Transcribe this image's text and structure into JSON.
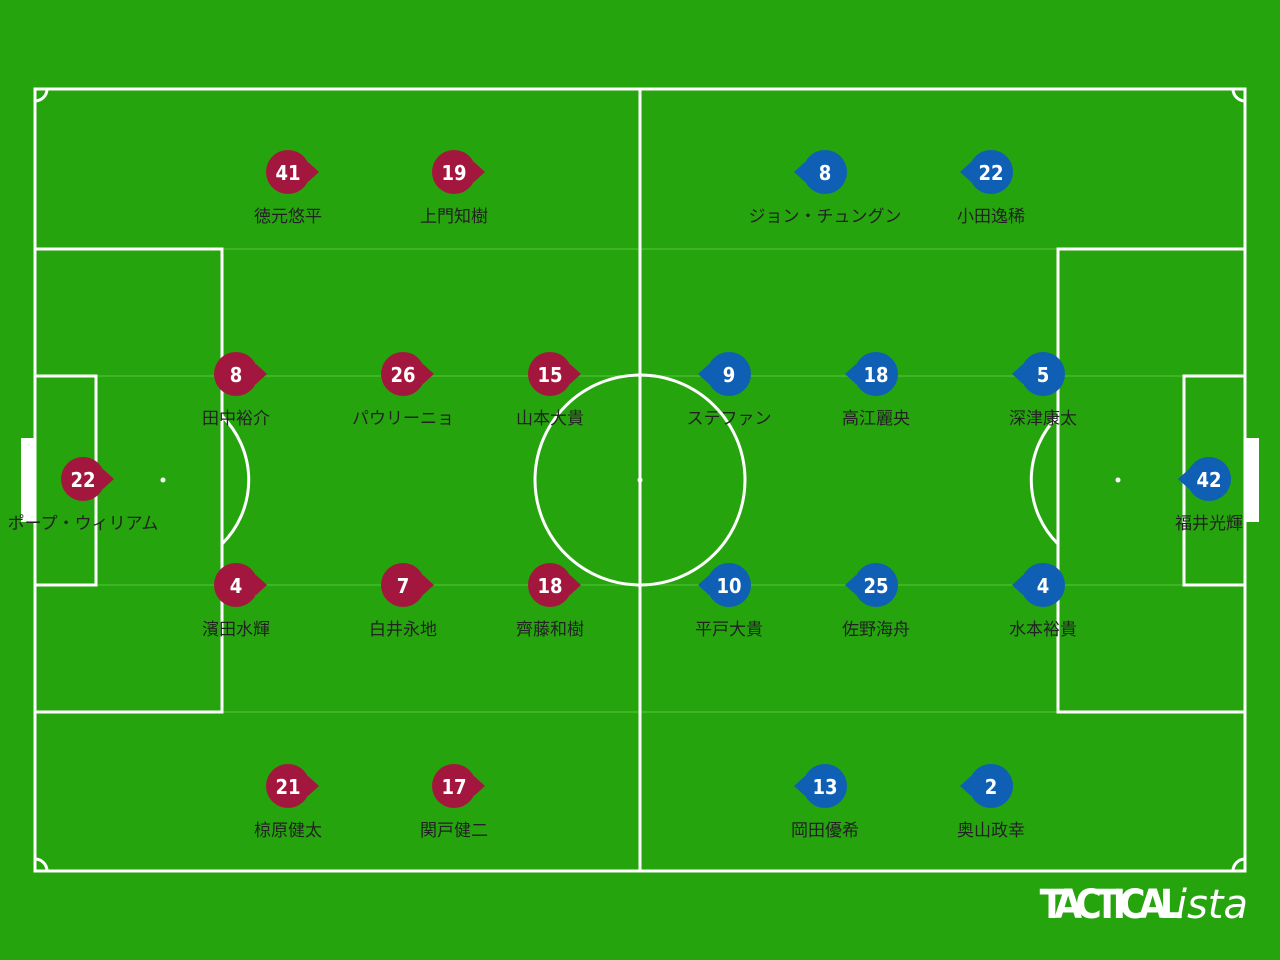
{
  "home": {
    "players": [
      {
        "number": 41,
        "name": "徳元悠平"
      },
      {
        "number": 19,
        "name": "上門知樹"
      },
      {
        "number": 8,
        "name": "田中裕介"
      },
      {
        "number": 26,
        "name": "パウリーニョ"
      },
      {
        "number": 15,
        "name": "山本大貴"
      },
      {
        "number": 22,
        "name": "ポープ・ウィリアム"
      },
      {
        "number": 4,
        "name": "濱田水輝"
      },
      {
        "number": 7,
        "name": "白井永地"
      },
      {
        "number": 18,
        "name": "齊藤和樹"
      },
      {
        "number": 21,
        "name": "椋原健太"
      },
      {
        "number": 17,
        "name": "関戸健二"
      }
    ]
  },
  "away": {
    "players": [
      {
        "number": 8,
        "name": "ジョン・チュングン"
      },
      {
        "number": 22,
        "name": "小田逸稀"
      },
      {
        "number": 9,
        "name": "ステファン"
      },
      {
        "number": 18,
        "name": "高江麗央"
      },
      {
        "number": 5,
        "name": "深津康太"
      },
      {
        "number": 42,
        "name": "福井光輝"
      },
      {
        "number": 10,
        "name": "平戸大貴"
      },
      {
        "number": 25,
        "name": "佐野海舟"
      },
      {
        "number": 4,
        "name": "水本裕貴"
      },
      {
        "number": 13,
        "name": "岡田優希"
      },
      {
        "number": 2,
        "name": "奥山政幸"
      }
    ]
  },
  "brand": {
    "main": "TACTICAL",
    "suffix": "ista"
  }
}
